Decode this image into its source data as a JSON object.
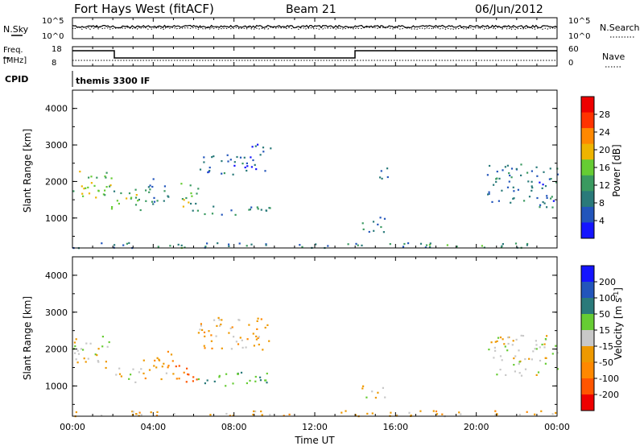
{
  "header": {
    "title": "Fort Hays West (fitACF)",
    "beam": "Beam 21",
    "date": "06/Jun/2012"
  },
  "top_panel": {
    "left_label": "N.Sky",
    "left_ticks": [
      "10^5",
      "10^0"
    ],
    "right_label": "N.Search",
    "right_ticks": [
      "10^5",
      "10^0"
    ]
  },
  "freq_panel": {
    "left_label": "Freq.",
    "left_unit": "[MHz]",
    "left_ticks": [
      "18",
      "8"
    ],
    "right_label": "Nave",
    "right_ticks": [
      "60",
      "0"
    ]
  },
  "cpid_panel": {
    "label": "CPID",
    "text": "themis 3300 IF"
  },
  "axis": {
    "y_label": "Slant Range [km]",
    "y_ticks": [
      "4000",
      "3000",
      "2000",
      "1000"
    ],
    "x_ticks": [
      "00:00",
      "04:00",
      "08:00",
      "12:00",
      "16:00",
      "20:00",
      "00:00"
    ],
    "x_label": "Time UT"
  },
  "power_scale": {
    "label": "Power [dB]",
    "ticks": [
      "28",
      "24",
      "20",
      "16",
      "12",
      "8",
      "4"
    ],
    "colors": [
      "#1414ff",
      "#2255bb",
      "#2a7a7a",
      "#3a9a60",
      "#66cc33",
      "#eeb400",
      "#ff8800",
      "#ff3300",
      "#ee0000"
    ]
  },
  "velocity_scale": {
    "label": "Velocity [m s",
    "label_sup": "-1",
    "label_end": "]",
    "ticks": [
      "200",
      "100",
      "50",
      "15",
      "-15",
      "-50",
      "-100",
      "-200"
    ],
    "colors": [
      "#1414ff",
      "#2255bb",
      "#2a7a7a",
      "#66cc33",
      "#c8c8c8",
      "#ee9900",
      "#ff8800",
      "#ff5500",
      "#ee0000"
    ]
  },
  "chart_data": [
    {
      "type": "heatmap",
      "name": "power",
      "xlabel": "Time UT",
      "ylabel": "Slant Range [km]",
      "xlim": [
        0,
        24
      ],
      "ylim": [
        180,
        4500
      ],
      "colorbar": {
        "label": "Power [dB]",
        "range": [
          0,
          32
        ]
      },
      "blobs": [
        {
          "t0": 0.0,
          "t1": 1.9,
          "r0": 1500,
          "r1": 2400,
          "v": 16
        },
        {
          "t0": 1.9,
          "t1": 3.4,
          "r0": 1100,
          "r1": 1800,
          "v": 14
        },
        {
          "t0": 3.4,
          "t1": 5.0,
          "r0": 1400,
          "r1": 2100,
          "v": 8
        },
        {
          "t0": 5.0,
          "t1": 6.2,
          "r0": 1200,
          "r1": 2000,
          "v": 14
        },
        {
          "t0": 6.2,
          "t1": 8.5,
          "r0": 2200,
          "r1": 2800,
          "v": 7
        },
        {
          "t0": 6.5,
          "t1": 9.8,
          "r0": 1100,
          "r1": 1400,
          "v": 9
        },
        {
          "t0": 8.5,
          "t1": 9.8,
          "r0": 2300,
          "r1": 3100,
          "v": 6
        },
        {
          "t0": 14.3,
          "t1": 15.5,
          "r0": 600,
          "r1": 1100,
          "v": 7
        },
        {
          "t0": 15.0,
          "t1": 15.6,
          "r0": 1900,
          "r1": 2400,
          "v": 6
        },
        {
          "t0": 20.5,
          "t1": 24.0,
          "r0": 1300,
          "r1": 2500,
          "v": 8
        },
        {
          "t0": 0.0,
          "t1": 24.0,
          "r0": 200,
          "r1": 350,
          "v": 10
        }
      ]
    },
    {
      "type": "heatmap",
      "name": "velocity",
      "xlabel": "Time UT",
      "ylabel": "Slant Range [km]",
      "xlim": [
        0,
        24
      ],
      "ylim": [
        180,
        4500
      ],
      "colorbar": {
        "label": "Velocity [m s-1]",
        "range": [
          -250,
          250
        ]
      },
      "blobs": [
        {
          "t0": 0.0,
          "t1": 1.9,
          "r0": 1500,
          "r1": 2400,
          "v": 0
        },
        {
          "t0": 1.9,
          "t1": 3.4,
          "r0": 1100,
          "r1": 1500,
          "v": -10
        },
        {
          "t0": 3.4,
          "t1": 5.0,
          "r0": 1200,
          "r1": 2000,
          "v": -40
        },
        {
          "t0": 5.0,
          "t1": 6.2,
          "r0": 1000,
          "r1": 1600,
          "v": -110
        },
        {
          "t0": 6.2,
          "t1": 9.8,
          "r0": 1000,
          "r1": 1400,
          "v": 45
        },
        {
          "t0": 6.2,
          "t1": 9.8,
          "r0": 2000,
          "r1": 2900,
          "v": -30
        },
        {
          "t0": 14.3,
          "t1": 15.5,
          "r0": 700,
          "r1": 1100,
          "v": 0
        },
        {
          "t0": 20.5,
          "t1": 24.0,
          "r0": 1300,
          "r1": 2400,
          "v": 0
        },
        {
          "t0": 0.0,
          "t1": 24.0,
          "r0": 200,
          "r1": 350,
          "v": -30
        }
      ]
    }
  ]
}
